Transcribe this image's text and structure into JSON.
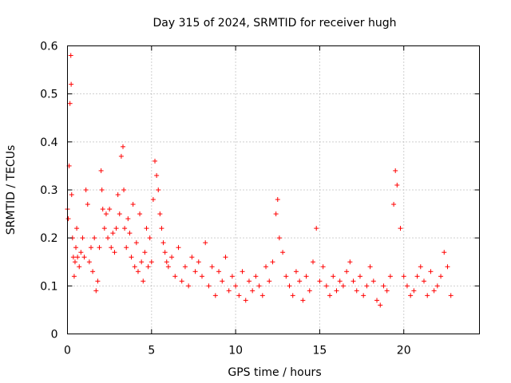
{
  "chart_data": {
    "type": "scatter",
    "title": "Day 315 of 2024, SRMTID for receiver hugh",
    "xlabel": "GPS time / hours",
    "ylabel": "SRMTID / TECUs",
    "xlim": [
      0,
      24.5
    ],
    "ylim": [
      0,
      0.6
    ],
    "xticks": [
      0,
      5,
      10,
      15,
      20
    ],
    "yticks": [
      0,
      0.1,
      0.2,
      0.3,
      0.4,
      0.5,
      0.6
    ],
    "xtick_labels": [
      "0",
      "5",
      "10",
      "15",
      "20"
    ],
    "ytick_labels": [
      "0",
      "0.1",
      "0.2",
      "0.3",
      "0.4",
      "0.5",
      "0.6"
    ],
    "grid": true,
    "marker": "+",
    "color": "#ff0000",
    "series": [
      {
        "name": "SRMTID",
        "x": [
          0.0,
          0.05,
          0.1,
          0.15,
          0.2,
          0.22,
          0.25,
          0.3,
          0.35,
          0.4,
          0.45,
          0.5,
          0.55,
          0.6,
          0.7,
          0.8,
          0.9,
          1.0,
          1.1,
          1.2,
          1.3,
          1.4,
          1.5,
          1.6,
          1.7,
          1.8,
          1.9,
          2.0,
          2.05,
          2.1,
          2.2,
          2.3,
          2.4,
          2.5,
          2.6,
          2.7,
          2.8,
          2.9,
          3.0,
          3.1,
          3.2,
          3.3,
          3.35,
          3.4,
          3.5,
          3.6,
          3.7,
          3.8,
          3.9,
          4.0,
          4.1,
          4.2,
          4.3,
          4.4,
          4.5,
          4.6,
          4.7,
          4.8,
          4.9,
          5.0,
          5.1,
          5.2,
          5.3,
          5.4,
          5.5,
          5.6,
          5.7,
          5.8,
          5.9,
          6.0,
          6.2,
          6.4,
          6.6,
          6.8,
          7.0,
          7.2,
          7.4,
          7.6,
          7.8,
          8.0,
          8.2,
          8.4,
          8.6,
          8.8,
          9.0,
          9.2,
          9.4,
          9.6,
          9.8,
          10.0,
          10.2,
          10.4,
          10.6,
          10.8,
          11.0,
          11.2,
          11.4,
          11.6,
          11.8,
          12.0,
          12.2,
          12.4,
          12.5,
          12.6,
          12.8,
          13.0,
          13.2,
          13.4,
          13.6,
          13.8,
          14.0,
          14.2,
          14.4,
          14.6,
          14.8,
          15.0,
          15.2,
          15.4,
          15.6,
          15.8,
          16.0,
          16.2,
          16.4,
          16.6,
          16.8,
          17.0,
          17.2,
          17.4,
          17.6,
          17.8,
          18.0,
          18.2,
          18.4,
          18.6,
          18.8,
          19.0,
          19.2,
          19.4,
          19.5,
          19.6,
          19.8,
          20.0,
          20.2,
          20.4,
          20.6,
          20.8,
          21.0,
          21.2,
          21.4,
          21.6,
          21.8,
          22.0,
          22.2,
          22.4,
          22.6,
          22.8
        ],
        "y": [
          0.26,
          0.24,
          0.35,
          0.48,
          0.58,
          0.52,
          0.29,
          0.2,
          0.16,
          0.12,
          0.15,
          0.18,
          0.22,
          0.16,
          0.14,
          0.17,
          0.2,
          0.16,
          0.3,
          0.27,
          0.15,
          0.18,
          0.13,
          0.2,
          0.09,
          0.11,
          0.18,
          0.34,
          0.3,
          0.26,
          0.22,
          0.25,
          0.2,
          0.26,
          0.18,
          0.21,
          0.17,
          0.22,
          0.29,
          0.25,
          0.37,
          0.39,
          0.3,
          0.22,
          0.18,
          0.24,
          0.21,
          0.16,
          0.27,
          0.14,
          0.19,
          0.13,
          0.25,
          0.15,
          0.11,
          0.17,
          0.22,
          0.14,
          0.2,
          0.15,
          0.28,
          0.36,
          0.33,
          0.3,
          0.25,
          0.22,
          0.19,
          0.17,
          0.15,
          0.14,
          0.16,
          0.12,
          0.18,
          0.11,
          0.14,
          0.1,
          0.16,
          0.13,
          0.15,
          0.12,
          0.19,
          0.1,
          0.14,
          0.08,
          0.13,
          0.11,
          0.16,
          0.09,
          0.12,
          0.1,
          0.08,
          0.13,
          0.07,
          0.11,
          0.09,
          0.12,
          0.1,
          0.08,
          0.14,
          0.11,
          0.15,
          0.25,
          0.28,
          0.2,
          0.17,
          0.12,
          0.1,
          0.08,
          0.13,
          0.11,
          0.07,
          0.12,
          0.09,
          0.15,
          0.22,
          0.11,
          0.14,
          0.1,
          0.08,
          0.12,
          0.09,
          0.11,
          0.1,
          0.13,
          0.15,
          0.11,
          0.09,
          0.12,
          0.08,
          0.1,
          0.14,
          0.11,
          0.07,
          0.06,
          0.1,
          0.09,
          0.12,
          0.27,
          0.34,
          0.31,
          0.22,
          0.12,
          0.1,
          0.08,
          0.09,
          0.12,
          0.14,
          0.11,
          0.08,
          0.13,
          0.09,
          0.1,
          0.12,
          0.17,
          0.14,
          0.08
        ]
      }
    ]
  }
}
